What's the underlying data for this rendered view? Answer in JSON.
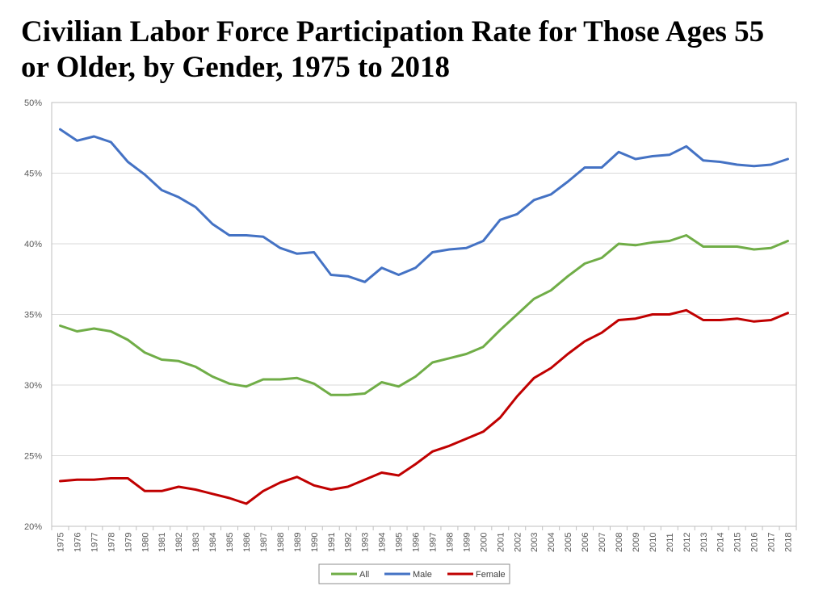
{
  "title": "Civilian Labor Force Participation Rate for Those Ages 55 or Older, by Gender, 1975 to 2018",
  "chart_data": {
    "type": "line",
    "title": "Civilian Labor Force Participation Rate for Those Ages 55 or Older, by Gender, 1975 to 2018",
    "xlabel": "",
    "ylabel": "",
    "ylim": [
      20,
      50
    ],
    "y_ticks": [
      "20%",
      "25%",
      "30%",
      "35%",
      "40%",
      "45%",
      "50%"
    ],
    "grid": true,
    "legend_position": "bottom",
    "categories": [
      "1975",
      "1976",
      "1977",
      "1978",
      "1979",
      "1980",
      "1981",
      "1982",
      "1983",
      "1984",
      "1985",
      "1986",
      "1987",
      "1988",
      "1989",
      "1990",
      "1991",
      "1992",
      "1993",
      "1994",
      "1995",
      "1996",
      "1997",
      "1998",
      "1999",
      "2000",
      "2001",
      "2002",
      "2003",
      "2004",
      "2005",
      "2006",
      "2007",
      "2008",
      "2009",
      "2010",
      "2011",
      "2012",
      "2013",
      "2014",
      "2015",
      "2016",
      "2017",
      "2018"
    ],
    "series": [
      {
        "name": "All",
        "color": "#70ad47",
        "values": [
          34.2,
          33.8,
          34.0,
          33.8,
          33.2,
          32.3,
          31.8,
          31.7,
          31.3,
          30.6,
          30.1,
          29.9,
          30.4,
          30.4,
          30.5,
          30.1,
          29.3,
          29.3,
          29.4,
          30.2,
          29.9,
          30.6,
          31.6,
          31.9,
          32.2,
          32.7,
          33.9,
          35.0,
          36.1,
          36.7,
          37.7,
          38.6,
          39.0,
          40.0,
          39.9,
          40.1,
          40.2,
          40.6,
          39.8,
          39.8,
          39.8,
          39.6,
          39.7,
          40.2
        ]
      },
      {
        "name": "Male",
        "color": "#4472c4",
        "values": [
          48.1,
          47.3,
          47.6,
          47.2,
          45.8,
          44.9,
          43.8,
          43.3,
          42.6,
          41.4,
          40.6,
          40.6,
          40.5,
          39.7,
          39.3,
          39.4,
          37.8,
          37.7,
          37.3,
          38.3,
          37.8,
          38.3,
          39.4,
          39.6,
          39.7,
          40.2,
          41.7,
          42.1,
          43.1,
          43.5,
          44.4,
          45.4,
          45.4,
          46.5,
          46.0,
          46.2,
          46.3,
          46.9,
          45.9,
          45.8,
          45.6,
          45.5,
          45.6,
          46.0
        ]
      },
      {
        "name": "Female",
        "color": "#c00000",
        "values": [
          23.2,
          23.3,
          23.3,
          23.4,
          23.4,
          22.5,
          22.5,
          22.8,
          22.6,
          22.3,
          22.0,
          21.6,
          22.5,
          23.1,
          23.5,
          22.9,
          22.6,
          22.8,
          23.3,
          23.8,
          23.6,
          24.4,
          25.3,
          25.7,
          26.2,
          26.7,
          27.7,
          29.2,
          30.5,
          31.2,
          32.2,
          33.1,
          33.7,
          34.6,
          34.7,
          35.0,
          35.0,
          35.3,
          34.6,
          34.6,
          34.7,
          34.5,
          34.6,
          35.1
        ]
      }
    ]
  }
}
